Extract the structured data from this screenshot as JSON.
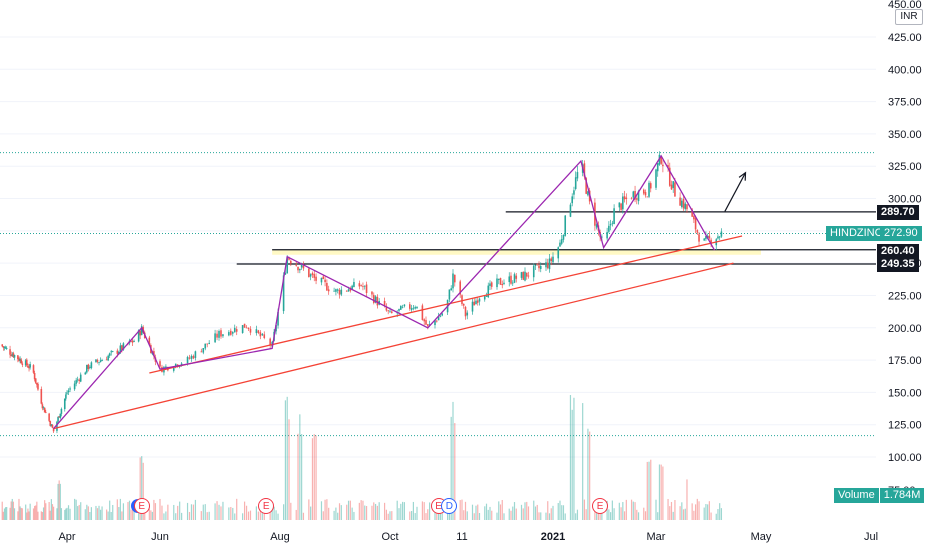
{
  "chart_data": {
    "type": "candlestick",
    "symbol": "HINDZINC",
    "currency": "INR",
    "last_price": 272.9,
    "y_axis": {
      "ticks": [
        100,
        125,
        150,
        175,
        200,
        225,
        250,
        275,
        300,
        325,
        350,
        375,
        400,
        425
      ],
      "tick_labels": [
        "100.00",
        "125.00",
        "150.00",
        "175.00",
        "200.00",
        "225.00",
        "250.00",
        "275.00",
        "300.00",
        "325.00",
        "350.00",
        "375.00",
        "400.00",
        "425.00"
      ],
      "top_partial_labels": [
        "450.00",
        "75.00"
      ],
      "ylim": [
        68,
        452
      ]
    },
    "x_axis": {
      "tick_labels": [
        "Apr",
        "Jun",
        "Aug",
        "Oct",
        "11",
        "2021",
        "Mar",
        "May",
        "Jul"
      ],
      "bold_labels": [
        "2021"
      ]
    },
    "price_markers": [
      {
        "label": "289.70",
        "value": 289.7
      },
      {
        "label": "272.90",
        "value": 272.9
      },
      {
        "label": "260.40",
        "value": 260.4
      },
      {
        "label": "249.35",
        "value": 249.35
      }
    ],
    "dotted_levels": [
      335.5,
      116.5,
      272.9
    ],
    "zigzag_pattern": [
      {
        "date": "2020-03-20",
        "price": 122
      },
      {
        "date": "2020-05-20",
        "price": 200
      },
      {
        "date": "2020-06-01",
        "price": 168
      },
      {
        "date": "2020-07-28",
        "price": 184
      },
      {
        "date": "2020-08-05",
        "price": 255
      },
      {
        "date": "2020-10-22",
        "price": 200
      },
      {
        "date": "2021-01-17",
        "price": 329
      },
      {
        "date": "2021-01-30",
        "price": 262
      },
      {
        "date": "2021-03-04",
        "price": 333
      },
      {
        "date": "2021-04-04",
        "price": 260
      }
    ],
    "trendlines": [
      {
        "from": {
          "date": "2020-03-20",
          "price": 122
        },
        "to": {
          "date": "2021-04-15",
          "price": 250
        }
      },
      {
        "from": {
          "date": "2020-05-25",
          "price": 165
        },
        "to": {
          "date": "2021-04-20",
          "price": 271
        }
      }
    ],
    "horizontal_lines": [
      {
        "price": 260.4,
        "from_date": "2020-07-28",
        "to_date": "2021-05-01"
      },
      {
        "price": 249.35,
        "from_date": "2020-07-10",
        "to_date": "2021-05-01"
      },
      {
        "price": 289.7,
        "from_date": "2020-12-05",
        "to_date": "2021-05-01"
      }
    ],
    "support_zone": {
      "from_price": 256.5,
      "to_price": 260.4
    },
    "arrow": {
      "from": {
        "date": "2021-04-10",
        "price": 290
      },
      "to": {
        "date": "2021-04-22",
        "price": 320
      }
    },
    "price_path": [
      [
        "2020-02-01",
        187
      ],
      [
        "2020-02-15",
        178
      ],
      [
        "2020-03-01",
        168
      ],
      [
        "2020-03-10",
        140
      ],
      [
        "2020-03-20",
        120
      ],
      [
        "2020-04-01",
        150
      ],
      [
        "2020-04-15",
        170
      ],
      [
        "2020-05-01",
        180
      ],
      [
        "2020-05-15",
        190
      ],
      [
        "2020-05-20",
        199
      ],
      [
        "2020-06-01",
        168
      ],
      [
        "2020-06-15",
        175
      ],
      [
        "2020-07-01",
        195
      ],
      [
        "2020-07-15",
        202
      ],
      [
        "2020-07-28",
        186
      ],
      [
        "2020-08-05",
        255
      ],
      [
        "2020-08-20",
        238
      ],
      [
        "2020-09-01",
        228
      ],
      [
        "2020-09-15",
        233
      ],
      [
        "2020-10-01",
        210
      ],
      [
        "2020-10-15",
        218
      ],
      [
        "2020-10-22",
        200
      ],
      [
        "2020-11-01",
        214
      ],
      [
        "2020-11-05",
        240
      ],
      [
        "2020-11-12",
        210
      ],
      [
        "2020-11-20",
        225
      ],
      [
        "2020-12-01",
        235
      ],
      [
        "2020-12-15",
        240
      ],
      [
        "2020-12-30",
        250
      ],
      [
        "2021-01-05",
        265
      ],
      [
        "2021-01-12",
        305
      ],
      [
        "2021-01-17",
        328
      ],
      [
        "2021-01-22",
        295
      ],
      [
        "2021-01-30",
        262
      ],
      [
        "2021-02-05",
        290
      ],
      [
        "2021-02-15",
        303
      ],
      [
        "2021-02-25",
        307
      ],
      [
        "2021-03-04",
        332
      ],
      [
        "2021-03-12",
        305
      ],
      [
        "2021-03-20",
        290
      ],
      [
        "2021-03-28",
        265
      ],
      [
        "2021-04-04",
        270
      ],
      [
        "2021-04-08",
        272.9
      ]
    ],
    "volume_spikes": [
      [
        "2020-03-25",
        0.35
      ],
      [
        "2020-05-20",
        0.55
      ],
      [
        "2020-08-05",
        1.0
      ],
      [
        "2020-08-12",
        0.85
      ],
      [
        "2020-08-20",
        0.75
      ],
      [
        "2020-11-05",
        0.95
      ],
      [
        "2021-01-12",
        1.0
      ],
      [
        "2021-01-17",
        1.0
      ],
      [
        "2021-01-22",
        0.75
      ],
      [
        "2021-02-25",
        0.55
      ],
      [
        "2021-03-04",
        0.45
      ],
      [
        "2021-03-20",
        0.4
      ]
    ],
    "volume_label": "Volume",
    "volume_value": "1.784M",
    "events": [
      {
        "type": "E",
        "date": "2020-05-20",
        "overlap": "blue"
      },
      {
        "type": "E",
        "date": "2020-07-25"
      },
      {
        "type": "E",
        "date": "2020-10-28"
      },
      {
        "type": "D",
        "date": "2020-11-03"
      },
      {
        "type": "E",
        "date": "2021-01-28"
      }
    ],
    "colors": {
      "up": "#26a69a",
      "down": "#ef5350",
      "zigzag": "#9c27b0",
      "trend": "#f44336",
      "level": "#131722",
      "zone": "#fff9c4",
      "dotted": "#26a69a",
      "grid": "#f0f3fa"
    }
  },
  "ui": {
    "currency_button": "INR",
    "top_partial_label": "450.00",
    "volume_axis_partial": "75.00",
    "ticker_label": "HINDZINC",
    "ticker_price": "272.90",
    "badge_289": "289.70",
    "badge_260": "260.40",
    "badge_249": "249.35",
    "volume_label": "Volume",
    "volume_value": "1.784M",
    "event_e": "E",
    "event_d": "D"
  }
}
